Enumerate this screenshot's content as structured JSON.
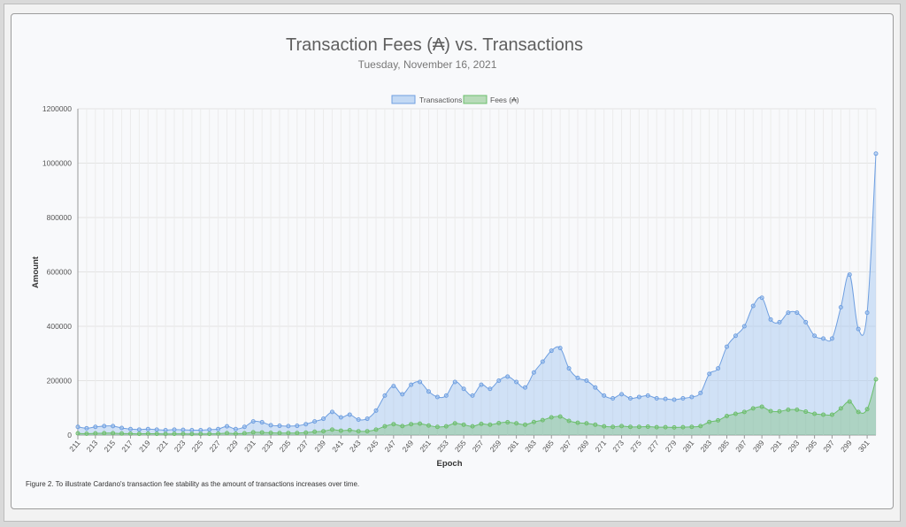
{
  "chart_data": {
    "type": "area",
    "title": "Transaction Fees (₳) vs. Transactions",
    "subtitle": "Tuesday, November 16, 2021",
    "xlabel": "Epoch",
    "ylabel": "Amount",
    "ylim": [
      0,
      1200000
    ],
    "yticks": [
      0,
      200000,
      400000,
      600000,
      800000,
      1000000,
      1200000
    ],
    "grid": true,
    "legend_position": "top-center",
    "x": [
      211,
      212,
      213,
      214,
      215,
      216,
      217,
      218,
      219,
      220,
      221,
      222,
      223,
      224,
      225,
      226,
      227,
      228,
      229,
      230,
      231,
      232,
      233,
      234,
      235,
      236,
      237,
      238,
      239,
      240,
      241,
      242,
      243,
      244,
      245,
      246,
      247,
      248,
      249,
      250,
      251,
      252,
      253,
      254,
      255,
      256,
      257,
      258,
      259,
      260,
      261,
      262,
      263,
      264,
      265,
      266,
      267,
      268,
      269,
      270,
      271,
      272,
      273,
      274,
      275,
      276,
      277,
      278,
      279,
      280,
      281,
      282,
      283,
      284,
      285,
      286,
      287,
      288,
      289,
      290,
      291,
      292,
      293,
      294,
      295,
      296,
      297,
      298,
      299,
      300,
      301,
      302
    ],
    "xtick_labels": [
      "211",
      "213",
      "215",
      "217",
      "219",
      "221",
      "223",
      "225",
      "227",
      "229",
      "231",
      "233",
      "235",
      "237",
      "239",
      "241",
      "243",
      "245",
      "247",
      "249",
      "251",
      "253",
      "255",
      "257",
      "259",
      "261",
      "263",
      "265",
      "267",
      "269",
      "271",
      "273",
      "275",
      "277",
      "279",
      "281",
      "283",
      "285",
      "287",
      "289",
      "291",
      "293",
      "295",
      "297",
      "299",
      "301"
    ],
    "series": [
      {
        "name": "Transactions",
        "color": "#6f9fe0",
        "fill": "rgba(160,195,240,0.45)",
        "values": [
          30000,
          25000,
          30000,
          33000,
          33000,
          26000,
          22000,
          20000,
          22000,
          20000,
          18000,
          20000,
          19000,
          18000,
          18000,
          20000,
          22000,
          32000,
          22000,
          30000,
          50000,
          47000,
          36000,
          34000,
          33000,
          34000,
          40000,
          50000,
          60000,
          85000,
          65000,
          75000,
          57000,
          60000,
          90000,
          145000,
          180000,
          150000,
          185000,
          195000,
          160000,
          140000,
          145000,
          195000,
          170000,
          145000,
          185000,
          170000,
          200000,
          215000,
          195000,
          175000,
          230000,
          270000,
          310000,
          320000,
          245000,
          210000,
          200000,
          175000,
          145000,
          135000,
          150000,
          135000,
          140000,
          145000,
          135000,
          133000,
          130000,
          135000,
          140000,
          155000,
          225000,
          245000,
          325000,
          365000,
          400000,
          475000,
          505000,
          425000,
          415000,
          450000,
          450000,
          415000,
          365000,
          355000,
          355000,
          470000,
          590000,
          390000,
          450000,
          1035000
        ]
      },
      {
        "name": "Fees (₳)",
        "color": "#6cbf6c",
        "fill": "rgba(120,190,120,0.40)",
        "values": [
          6000,
          5000,
          6000,
          7000,
          7000,
          5500,
          5000,
          4500,
          5000,
          4500,
          4000,
          4500,
          4500,
          4000,
          4000,
          4500,
          5000,
          7000,
          5000,
          6500,
          10000,
          9500,
          8000,
          7500,
          7500,
          7500,
          9000,
          12000,
          14000,
          20000,
          16000,
          18000,
          14000,
          14000,
          20000,
          32000,
          40000,
          33000,
          40000,
          42000,
          35000,
          30000,
          32000,
          43000,
          38000,
          32000,
          41000,
          38000,
          44000,
          47000,
          43000,
          38000,
          48000,
          55000,
          65000,
          68000,
          52000,
          45000,
          43000,
          38000,
          32000,
          30000,
          33000,
          30000,
          30000,
          31000,
          29000,
          29000,
          28000,
          29000,
          30000,
          33000,
          48000,
          54000,
          70000,
          78000,
          85000,
          98000,
          104000,
          88000,
          87000,
          93000,
          93000,
          86000,
          78000,
          75000,
          75000,
          98000,
          123000,
          85000,
          95000,
          205000
        ]
      }
    ]
  },
  "caption": "Figure 2. To illustrate Cardano's transaction fee stability as the amount of transactions increases over time."
}
